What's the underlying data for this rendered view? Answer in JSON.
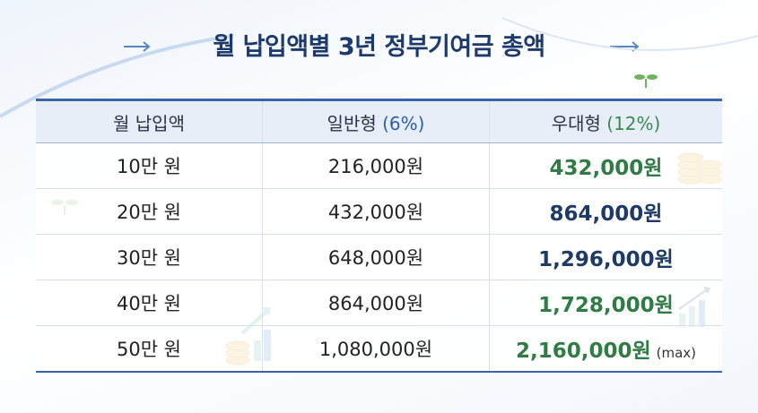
{
  "title": "월 납입액별 3년 정부기여금 총액",
  "table": {
    "header": [
      {
        "label": "월 납입액"
      },
      {
        "label": "일반형",
        "rate": "(6%)"
      },
      {
        "label": "우대형",
        "rate": "(12%)"
      }
    ],
    "rows": [
      [
        "10만 원",
        "216,000원",
        "432,000원"
      ],
      [
        "20만 원",
        "432,000원",
        "864,000원"
      ],
      [
        "30만 원",
        "648,000원",
        "1,296,000원"
      ],
      [
        "40만 원",
        "864,000원",
        "1,728,000원"
      ],
      [
        "50만 원",
        "1,080,000원",
        "2,160,000원"
      ]
    ],
    "max_note": "(max)"
  }
}
